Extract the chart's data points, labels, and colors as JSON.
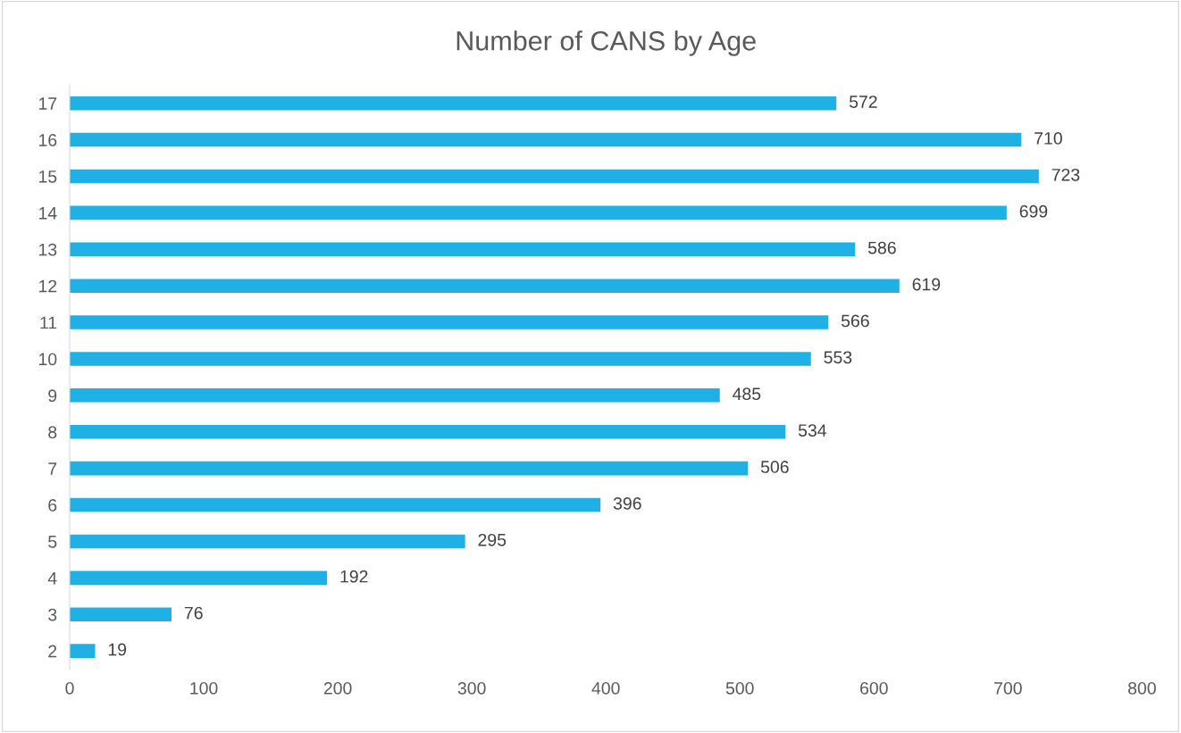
{
  "chart_data": {
    "type": "bar",
    "orientation": "horizontal",
    "title": "Number of CANS by Age",
    "categories": [
      "17",
      "16",
      "15",
      "14",
      "13",
      "12",
      "11",
      "10",
      "9",
      "8",
      "7",
      "6",
      "5",
      "4",
      "3",
      "2"
    ],
    "values": [
      572,
      710,
      723,
      699,
      586,
      619,
      566,
      553,
      485,
      534,
      506,
      396,
      295,
      192,
      76,
      19
    ],
    "color": "#1fb0e6",
    "xlim": [
      0,
      800
    ],
    "xticks": [
      0,
      100,
      200,
      300,
      400,
      500,
      600,
      700,
      800
    ],
    "grid": false,
    "data_labels": true
  }
}
